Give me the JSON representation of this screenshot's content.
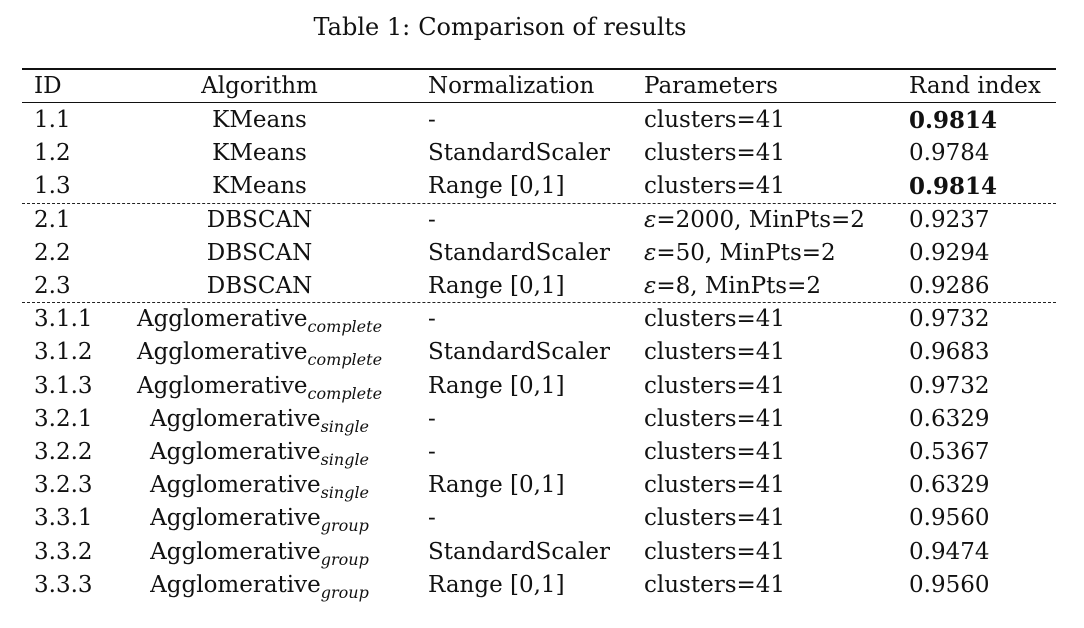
{
  "caption": {
    "label": "Table 1:",
    "text": "Comparison of results"
  },
  "table": {
    "headers": {
      "id": "ID",
      "algorithm": "Algorithm",
      "normalization": "Normalization",
      "parameters": "Parameters",
      "rand_index": "Rand index"
    },
    "groups": [
      {
        "rows": [
          {
            "id": "1.1",
            "algorithm": "KMeans",
            "subscript": "",
            "normalization": "-",
            "eps": "",
            "parameters": "clusters=41",
            "rand_index": "0.9814",
            "bold": true
          },
          {
            "id": "1.2",
            "algorithm": "KMeans",
            "subscript": "",
            "normalization": "StandardScaler",
            "eps": "",
            "parameters": "clusters=41",
            "rand_index": "0.9784",
            "bold": false
          },
          {
            "id": "1.3",
            "algorithm": "KMeans",
            "subscript": "",
            "normalization": "Range [0,1]",
            "eps": "",
            "parameters": "clusters=41",
            "rand_index": "0.9814",
            "bold": true
          }
        ]
      },
      {
        "rows": [
          {
            "id": "2.1",
            "algorithm": "DBSCAN",
            "subscript": "",
            "normalization": "-",
            "eps": "ε",
            "parameters": "=2000, MinPts=2",
            "rand_index": "0.9237",
            "bold": false
          },
          {
            "id": "2.2",
            "algorithm": "DBSCAN",
            "subscript": "",
            "normalization": "StandardScaler",
            "eps": "ε",
            "parameters": "=50, MinPts=2",
            "rand_index": "0.9294",
            "bold": false
          },
          {
            "id": "2.3",
            "algorithm": "DBSCAN",
            "subscript": "",
            "normalization": "Range [0,1]",
            "eps": "ε",
            "parameters": "=8, MinPts=2",
            "rand_index": "0.9286",
            "bold": false
          }
        ]
      },
      {
        "rows": [
          {
            "id": "3.1.1",
            "algorithm": "Agglomerative",
            "subscript": "complete",
            "normalization": "-",
            "eps": "",
            "parameters": "clusters=41",
            "rand_index": "0.9732",
            "bold": false
          },
          {
            "id": "3.1.2",
            "algorithm": "Agglomerative",
            "subscript": "complete",
            "normalization": "StandardScaler",
            "eps": "",
            "parameters": "clusters=41",
            "rand_index": "0.9683",
            "bold": false
          },
          {
            "id": "3.1.3",
            "algorithm": "Agglomerative",
            "subscript": "complete",
            "normalization": "Range [0,1]",
            "eps": "",
            "parameters": "clusters=41",
            "rand_index": "0.9732",
            "bold": false
          },
          {
            "id": "3.2.1",
            "algorithm": "Agglomerative",
            "subscript": "single",
            "normalization": "-",
            "eps": "",
            "parameters": "clusters=41",
            "rand_index": "0.6329",
            "bold": false
          },
          {
            "id": "3.2.2",
            "algorithm": "Agglomerative",
            "subscript": "single",
            "normalization": "-",
            "eps": "",
            "parameters": "clusters=41",
            "rand_index": "0.5367",
            "bold": false
          },
          {
            "id": "3.2.3",
            "algorithm": "Agglomerative",
            "subscript": "single",
            "normalization": "Range [0,1]",
            "eps": "",
            "parameters": "clusters=41",
            "rand_index": "0.6329",
            "bold": false
          },
          {
            "id": "3.3.1",
            "algorithm": "Agglomerative",
            "subscript": "group",
            "normalization": "-",
            "eps": "",
            "parameters": "clusters=41",
            "rand_index": "0.9560",
            "bold": false
          },
          {
            "id": "3.3.2",
            "algorithm": "Agglomerative",
            "subscript": "group",
            "normalization": "StandardScaler",
            "eps": "",
            "parameters": "clusters=41",
            "rand_index": "0.9474",
            "bold": false
          },
          {
            "id": "3.3.3",
            "algorithm": "Agglomerative",
            "subscript": "group",
            "normalization": "Range [0,1]",
            "eps": "",
            "parameters": "clusters=41",
            "rand_index": "0.9560",
            "bold": false
          }
        ]
      }
    ]
  }
}
